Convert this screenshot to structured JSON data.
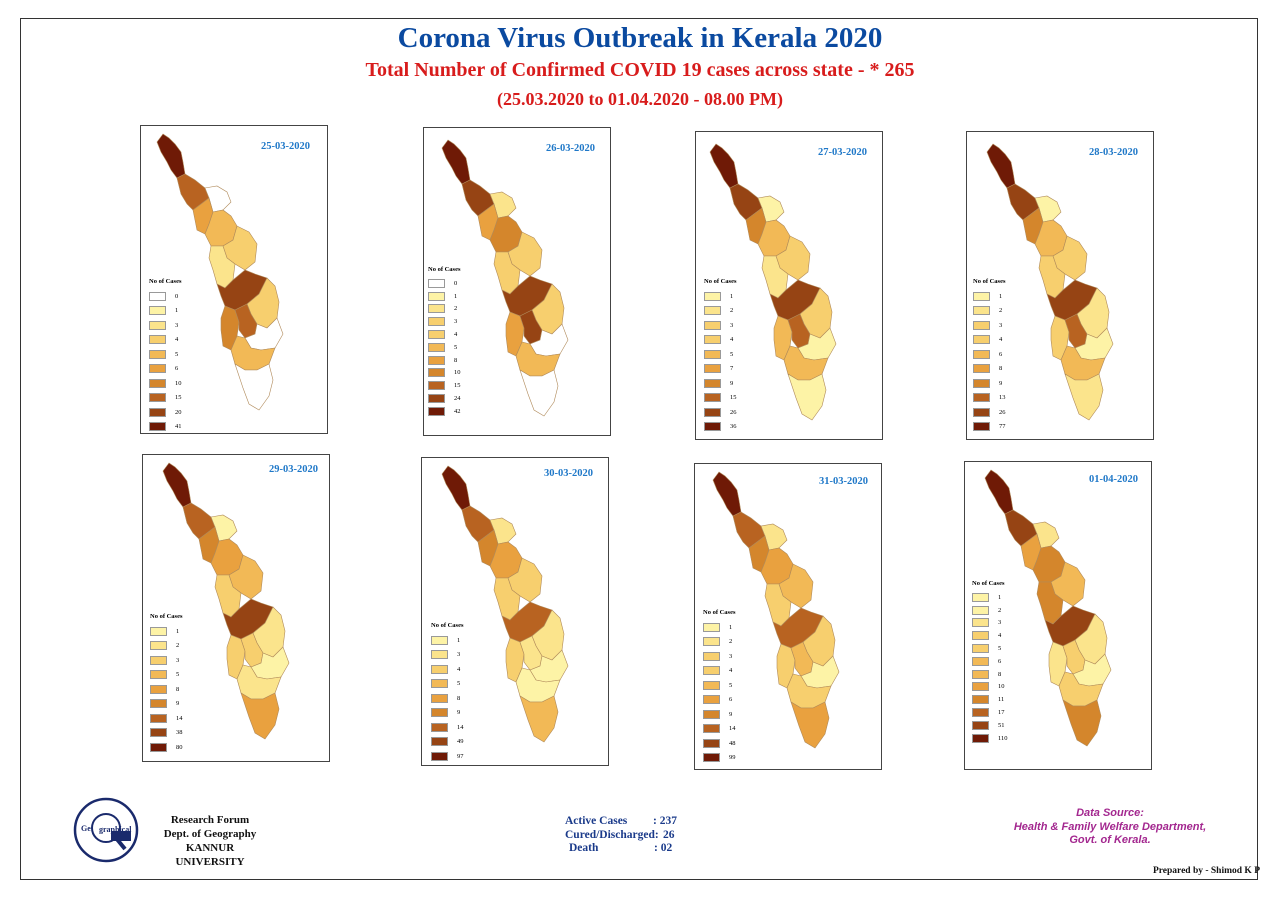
{
  "header": {
    "title": "Corona Virus Outbreak in Kerala 2020",
    "subtitle": "Total Number of Confirmed COVID 19 cases across state - * 265",
    "date_range": "(25.03.2020 to 01.04.2020 - 08.00 PM)"
  },
  "colors": {
    "title": "#0b4aa0",
    "subtitle": "#d81c1c",
    "date_label": "#1f78c8",
    "source": "#a3278f",
    "ramp": [
      "#ffffff",
      "#fdf3a6",
      "#fbe48c",
      "#f7cf6e",
      "#f2b956",
      "#e9a13f",
      "#d4862c",
      "#b86321",
      "#964414",
      "#6f1a06"
    ]
  },
  "legend_title": "No of Cases",
  "maps": [
    {
      "date": "25-03-2020",
      "legend": [
        "0",
        "1",
        "3",
        "4",
        "5",
        "6",
        "10",
        "15",
        "20",
        "41"
      ],
      "ramp": [
        0,
        1,
        2,
        3,
        4,
        5,
        6,
        7,
        8,
        9
      ],
      "districts": [
        9,
        7,
        0,
        5,
        4,
        3,
        2,
        8,
        3,
        6,
        7,
        0,
        4,
        0
      ]
    },
    {
      "date": "26-03-2020",
      "legend": [
        "0",
        "1",
        "2",
        "3",
        "4",
        "5",
        "8",
        "10",
        "15",
        "24",
        "42"
      ],
      "ramp": [
        0,
        1,
        2,
        3,
        3,
        4,
        5,
        6,
        7,
        8,
        9
      ],
      "districts": [
        9,
        8,
        2,
        5,
        6,
        3,
        3,
        8,
        3,
        5,
        8,
        0,
        4,
        0
      ]
    },
    {
      "date": "27-03-2020",
      "legend": [
        "1",
        "2",
        "3",
        "4",
        "5",
        "7",
        "9",
        "15",
        "26",
        "36"
      ],
      "ramp": [
        1,
        2,
        3,
        3,
        4,
        5,
        6,
        7,
        8,
        9
      ],
      "districts": [
        9,
        8,
        1,
        6,
        4,
        3,
        2,
        8,
        3,
        4,
        7,
        1,
        4,
        1
      ]
    },
    {
      "date": "28-03-2020",
      "legend": [
        "1",
        "2",
        "3",
        "4",
        "6",
        "8",
        "9",
        "13",
        "26",
        "77"
      ],
      "ramp": [
        1,
        2,
        3,
        3,
        4,
        5,
        6,
        7,
        8,
        9
      ],
      "districts": [
        9,
        8,
        1,
        6,
        4,
        3,
        3,
        8,
        2,
        3,
        7,
        1,
        4,
        2
      ]
    },
    {
      "date": "29-03-2020",
      "legend": [
        "1",
        "2",
        "3",
        "5",
        "8",
        "9",
        "14",
        "38",
        "80"
      ],
      "ramp": [
        1,
        2,
        3,
        4,
        5,
        6,
        7,
        8,
        9
      ],
      "districts": [
        9,
        7,
        1,
        6,
        5,
        4,
        3,
        8,
        2,
        3,
        3,
        1,
        2,
        5
      ]
    },
    {
      "date": "30-03-2020",
      "legend": [
        "1",
        "3",
        "4",
        "5",
        "8",
        "9",
        "14",
        "49",
        "97"
      ],
      "ramp": [
        1,
        2,
        3,
        4,
        5,
        6,
        7,
        8,
        9
      ],
      "districts": [
        9,
        7,
        2,
        6,
        5,
        3,
        3,
        7,
        2,
        3,
        2,
        1,
        1,
        4
      ]
    },
    {
      "date": "31-03-2020",
      "legend": [
        "1",
        "2",
        "3",
        "4",
        "5",
        "6",
        "9",
        "14",
        "48",
        "99"
      ],
      "ramp": [
        1,
        2,
        3,
        3,
        4,
        5,
        6,
        7,
        8,
        9
      ],
      "districts": [
        9,
        7,
        2,
        6,
        5,
        4,
        3,
        7,
        3,
        3,
        4,
        1,
        3,
        5
      ]
    },
    {
      "date": "01-04-2020",
      "legend": [
        "1",
        "2",
        "3",
        "4",
        "5",
        "6",
        "8",
        "10",
        "11",
        "17",
        "51",
        "110"
      ],
      "ramp": [
        1,
        1,
        2,
        3,
        3,
        4,
        4,
        5,
        6,
        7,
        8,
        9
      ],
      "districts": [
        9,
        8,
        2,
        5,
        6,
        4,
        6,
        8,
        2,
        2,
        3,
        1,
        3,
        6
      ]
    }
  ],
  "footer": {
    "logo_text": "Geographical",
    "forum_line1": "Research Forum",
    "forum_line2": "Dept. of Geography",
    "forum_line3": "KANNUR UNIVERSITY",
    "stats": [
      {
        "label": "Active Cases",
        "value": ": 237"
      },
      {
        "label": "Cured/Discharged:",
        "value": "26"
      },
      {
        "label": "Death",
        "value": ":  02"
      }
    ],
    "source_line1": "Data Source:",
    "source_line2": "Health & Family Welfare Department,",
    "source_line3": "Govt. of Kerala.",
    "prepared_by": "Prepared by - Shimod K P"
  }
}
